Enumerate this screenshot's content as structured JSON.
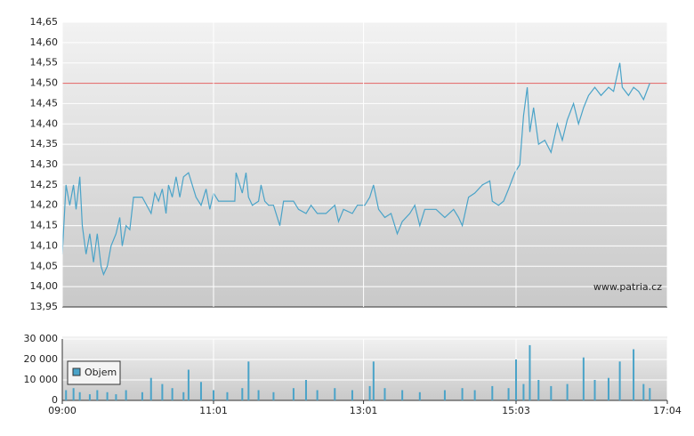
{
  "chart_data": [
    {
      "type": "line",
      "color": "#4aa3c8",
      "grid": true,
      "watermark": "www.patria.cz",
      "reference_line": {
        "value": 14.5,
        "color": "#e06060"
      },
      "xlim": [
        "09:00",
        "17:04"
      ],
      "ylim": [
        13.95,
        14.65
      ],
      "yticks": [
        {
          "value": 13.95,
          "label": "13,95"
        },
        {
          "value": 14.0,
          "label": "14,00"
        },
        {
          "value": 14.05,
          "label": "14,05"
        },
        {
          "value": 14.1,
          "label": "14,10"
        },
        {
          "value": 14.15,
          "label": "14,15"
        },
        {
          "value": 14.2,
          "label": "14,20"
        },
        {
          "value": 14.25,
          "label": "14,25"
        },
        {
          "value": 14.3,
          "label": "14,30"
        },
        {
          "value": 14.35,
          "label": "14,35"
        },
        {
          "value": 14.4,
          "label": "14,40"
        },
        {
          "value": 14.45,
          "label": "14,45"
        },
        {
          "value": 14.5,
          "label": "14,50"
        },
        {
          "value": 14.55,
          "label": "14,55"
        },
        {
          "value": 14.6,
          "label": "14,60"
        },
        {
          "value": 14.65,
          "label": "14,65"
        }
      ],
      "x": [
        "09:00",
        "09:03",
        "09:06",
        "09:09",
        "09:11",
        "09:14",
        "09:16",
        "09:19",
        "09:22",
        "09:25",
        "09:28",
        "09:31",
        "09:33",
        "09:36",
        "09:39",
        "09:43",
        "09:46",
        "09:48",
        "09:51",
        "09:54",
        "09:57",
        "10:04",
        "10:11",
        "10:14",
        "10:17",
        "10:20",
        "10:23",
        "10:25",
        "10:28",
        "10:31",
        "10:34",
        "10:37",
        "10:41",
        "10:44",
        "10:47",
        "10:51",
        "10:55",
        "10:58",
        "11:01",
        "11:05",
        "11:12",
        "11:18",
        "11:19",
        "11:24",
        "11:27",
        "11:29",
        "11:32",
        "11:37",
        "11:39",
        "11:42",
        "11:45",
        "11:49",
        "11:54",
        "11:57",
        "12:05",
        "12:09",
        "12:15",
        "12:19",
        "12:24",
        "12:31",
        "12:38",
        "12:41",
        "12:45",
        "12:52",
        "12:56",
        "13:02",
        "13:06",
        "13:09",
        "13:13",
        "13:18",
        "13:23",
        "13:28",
        "13:32",
        "13:38",
        "13:42",
        "13:46",
        "13:50",
        "13:59",
        "14:06",
        "14:13",
        "14:17",
        "14:20",
        "14:25",
        "14:30",
        "14:36",
        "14:42",
        "14:44",
        "14:49",
        "14:53",
        "14:57",
        "15:02",
        "15:06",
        "15:09",
        "15:12",
        "15:14",
        "15:17",
        "15:21",
        "15:26",
        "15:31",
        "15:36",
        "15:40",
        "15:44",
        "15:49",
        "15:53",
        "15:57",
        "16:01",
        "16:06",
        "16:11",
        "16:17",
        "16:21",
        "16:26",
        "16:28",
        "16:33",
        "16:37",
        "16:41",
        "16:45",
        "16:50"
      ],
      "values": [
        14.08,
        14.25,
        14.2,
        14.25,
        14.19,
        14.27,
        14.15,
        14.08,
        14.13,
        14.06,
        14.13,
        14.05,
        14.03,
        14.05,
        14.1,
        14.13,
        14.17,
        14.1,
        14.15,
        14.14,
        14.22,
        14.22,
        14.18,
        14.23,
        14.21,
        14.24,
        14.18,
        14.25,
        14.22,
        14.27,
        14.22,
        14.27,
        14.28,
        14.25,
        14.22,
        14.2,
        14.24,
        14.19,
        14.23,
        14.21,
        14.21,
        14.21,
        14.28,
        14.23,
        14.28,
        14.22,
        14.2,
        14.21,
        14.25,
        14.21,
        14.2,
        14.2,
        14.15,
        14.21,
        14.21,
        14.19,
        14.18,
        14.2,
        14.18,
        14.18,
        14.2,
        14.16,
        14.19,
        14.18,
        14.2,
        14.2,
        14.22,
        14.25,
        14.19,
        14.17,
        14.18,
        14.13,
        14.16,
        14.18,
        14.2,
        14.15,
        14.19,
        14.19,
        14.17,
        14.19,
        14.17,
        14.15,
        14.22,
        14.23,
        14.25,
        14.26,
        14.21,
        14.2,
        14.21,
        14.24,
        14.28,
        14.3,
        14.42,
        14.49,
        14.38,
        14.44,
        14.35,
        14.36,
        14.33,
        14.4,
        14.36,
        14.41,
        14.45,
        14.4,
        14.44,
        14.47,
        14.49,
        14.47,
        14.49,
        14.48,
        14.55,
        14.49,
        14.47,
        14.49,
        14.48,
        14.46,
        14.5
      ]
    },
    {
      "type": "bar",
      "grid": true,
      "xlim": [
        "09:00",
        "17:04"
      ],
      "xticks": [
        "09:00",
        "11:01",
        "13:01",
        "15:03",
        "17:04"
      ],
      "ylim": [
        0,
        30000
      ],
      "yticks": [
        0,
        {
          "value": 10000,
          "label": "10 000"
        },
        {
          "value": 20000,
          "label": "20 000"
        },
        {
          "value": 30000,
          "label": "30 000"
        }
      ],
      "x": [
        "09:03",
        "09:09",
        "09:14",
        "09:22",
        "09:28",
        "09:36",
        "09:43",
        "09:51",
        "10:04",
        "10:11",
        "10:20",
        "10:28",
        "10:37",
        "10:41",
        "10:51",
        "11:01",
        "11:12",
        "11:24",
        "11:29",
        "11:37",
        "11:49",
        "12:05",
        "12:15",
        "12:24",
        "12:38",
        "12:52",
        "13:06",
        "13:09",
        "13:18",
        "13:32",
        "13:46",
        "14:06",
        "14:20",
        "14:30",
        "14:44",
        "14:57",
        "15:03",
        "15:09",
        "15:14",
        "15:21",
        "15:31",
        "15:44",
        "15:57",
        "16:06",
        "16:17",
        "16:26",
        "16:37",
        "16:45",
        "16:50"
      ],
      "series": [
        {
          "name": "Objem",
          "color": "#4aa3c8",
          "values": [
            5000,
            6000,
            4000,
            3000,
            5000,
            4000,
            3000,
            5000,
            4000,
            11000,
            8000,
            6000,
            4000,
            15000,
            9000,
            5000,
            4000,
            6000,
            19000,
            5000,
            4000,
            6000,
            10000,
            5000,
            6000,
            5000,
            7000,
            19000,
            6000,
            5000,
            4000,
            5000,
            6000,
            5000,
            7000,
            6000,
            20000,
            8000,
            27000,
            10000,
            7000,
            8000,
            21000,
            10000,
            11000,
            19000,
            25000,
            8000,
            6000
          ]
        }
      ]
    }
  ]
}
